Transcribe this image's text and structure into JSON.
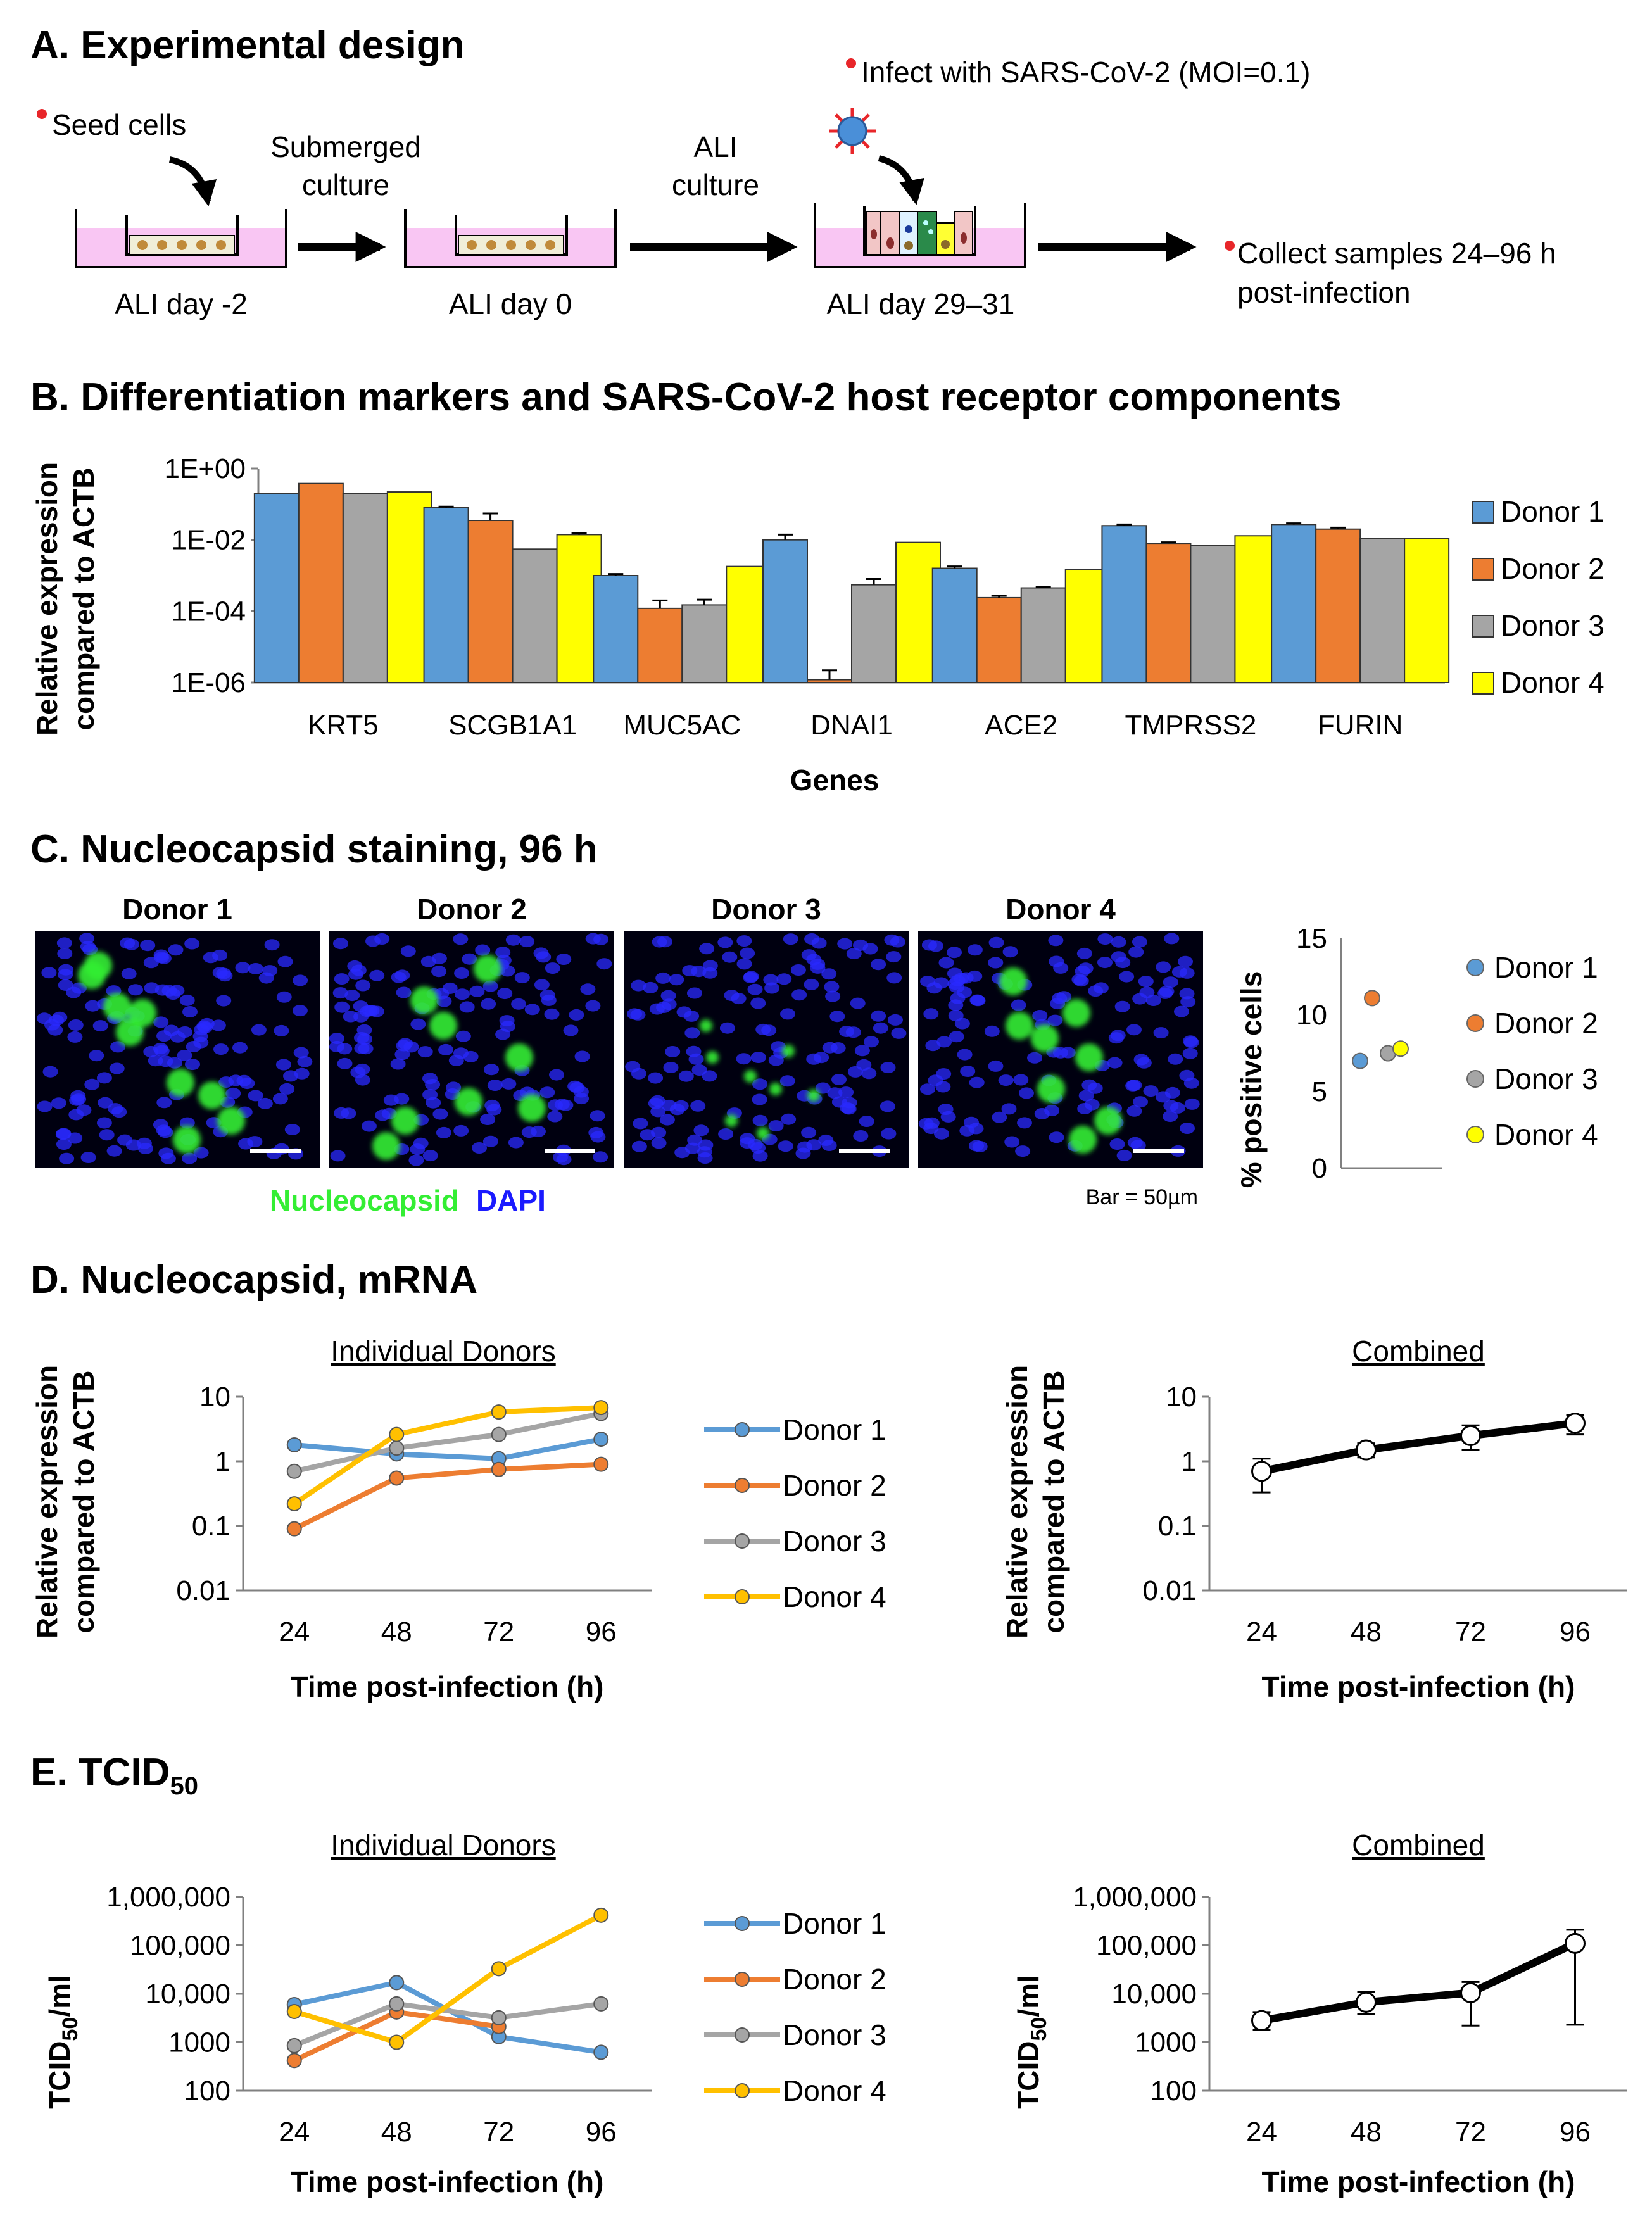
{
  "colors": {
    "donor1": "#5b9bd5",
    "donor2": "#ed7d31",
    "donor3": "#a5a5a5",
    "donor4": "#ffff00",
    "donor4_line": "#ffc000",
    "dot_red": "#e8262a",
    "pink": "#f9c6f3",
    "green": "#33ee33",
    "blue": "#1a1aff"
  },
  "panelA": {
    "title": "A. Experimental design",
    "seed": "Seed cells",
    "submerged1": "Submerged",
    "submerged2": "culture",
    "ali1": "ALI",
    "ali2": "culture",
    "infect": "Infect with SARS-CoV-2 (MOI=0.1)",
    "collect1": "Collect samples 24–96 h",
    "collect2": "post-infection",
    "day1": "ALI day -2",
    "day2": "ALI day 0",
    "day3": "ALI day 29–31"
  },
  "panelB": {
    "title": "B. Differentiation markers and SARS-CoV-2 host receptor components",
    "ylabel1": "Relative expression",
    "ylabel2": "compared to ACTB",
    "xlabel": "Genes",
    "yticks": [
      "1E+00",
      "1E-02",
      "1E-04",
      "1E-06"
    ],
    "legend": [
      "Donor 1",
      "Donor 2",
      "Donor 3",
      "Donor 4"
    ]
  },
  "panelC": {
    "title": "C. Nucleocapsid staining, 96 h",
    "donors": [
      "Donor 1",
      "Donor 2",
      "Donor 3",
      "Donor 4"
    ],
    "nuc": "Nucleocapsid",
    "dapi": "DAPI",
    "bar": "Bar = 50µm",
    "ylabel": "% positive cells",
    "yticks": [
      "15",
      "10",
      "5",
      "0"
    ],
    "legend": [
      "Donor 1",
      "Donor 2",
      "Donor 3",
      "Donor 4"
    ]
  },
  "panelD": {
    "title": "D. Nucleocapsid, mRNA",
    "sub_left": "Individual Donors",
    "sub_right": "Combined",
    "ylabel1": "Relative expression",
    "ylabel2": "compared to ACTB",
    "xlabel": "Time post-infection (h)",
    "yticks": [
      "10",
      "1",
      "0.1",
      "0.01"
    ],
    "xticks": [
      "24",
      "48",
      "72",
      "96"
    ],
    "legend": [
      "Donor 1",
      "Donor 2",
      "Donor 3",
      "Donor 4"
    ]
  },
  "panelE": {
    "title_main": "E. TCID",
    "title_sub": "50",
    "sub_left": "Individual Donors",
    "sub_right": "Combined",
    "ylabel_main": "TCID",
    "ylabel_sub": "50",
    "ylabel_end": "/ml",
    "xlabel": "Time post-infection (h)",
    "yticks": [
      "1,000,000",
      "100,000",
      "10,000",
      "1000",
      "100"
    ],
    "xticks": [
      "24",
      "48",
      "72",
      "96"
    ],
    "legend": [
      "Donor 1",
      "Donor 2",
      "Donor 3",
      "Donor 4"
    ]
  },
  "chart_data": [
    {
      "type": "bar",
      "title": "Differentiation markers and SARS-CoV-2 host receptor components",
      "xlabel": "Genes",
      "ylabel": "Relative expression compared to ACTB",
      "yscale": "log",
      "ylim": [
        1e-06,
        1
      ],
      "categories": [
        "KRT5",
        "SCGB1A1",
        "MUC5AC",
        "DNAI1",
        "ACE2",
        "TMPRSS2",
        "FURIN"
      ],
      "series": [
        {
          "name": "Donor 1",
          "values": [
            0.2,
            0.08,
            0.001,
            0.01,
            0.0016,
            0.025,
            0.027
          ],
          "errors": [
            0.0,
            0.005,
            0.0001,
            0.004,
            0.0002,
            0.002,
            0.002
          ]
        },
        {
          "name": "Donor 2",
          "values": [
            0.38,
            0.035,
            0.00012,
            1.2e-06,
            0.00024,
            0.008,
            0.02
          ],
          "errors": [
            0.0,
            0.02,
            8e-05,
            1e-06,
            3e-05,
            0.0005,
            0.002
          ]
        },
        {
          "name": "Donor 3",
          "values": [
            0.2,
            0.0055,
            0.00015,
            0.00055,
            0.00045,
            0.007,
            0.011
          ],
          "errors": [
            0.0,
            0.0,
            6e-05,
            0.00025,
            4e-05,
            0.0,
            0.0
          ]
        },
        {
          "name": "Donor 4",
          "values": [
            0.22,
            0.014,
            0.0018,
            0.0085,
            0.0015,
            0.013,
            0.011
          ],
          "errors": [
            0.0,
            0.0015,
            0.0,
            0.0,
            0.0,
            0.0,
            0.0
          ]
        }
      ]
    },
    {
      "type": "scatter",
      "title": "% positive cells",
      "ylabel": "% positive cells",
      "ylim": [
        0,
        15
      ],
      "points": [
        {
          "name": "Donor 1",
          "y": 7.0
        },
        {
          "name": "Donor 2",
          "y": 11.1
        },
        {
          "name": "Donor 3",
          "y": 7.5
        },
        {
          "name": "Donor 4",
          "y": 7.8
        }
      ]
    },
    {
      "type": "line",
      "title": "Individual Donors",
      "xlabel": "Time post-infection (h)",
      "ylabel": "Relative expression compared to ACTB",
      "yscale": "log",
      "ylim": [
        0.01,
        10
      ],
      "x": [
        24,
        48,
        72,
        96
      ],
      "series": [
        {
          "name": "Donor 1",
          "values": [
            1.8,
            1.3,
            1.1,
            2.2
          ]
        },
        {
          "name": "Donor 2",
          "values": [
            0.09,
            0.55,
            0.75,
            0.9
          ]
        },
        {
          "name": "Donor 3",
          "values": [
            0.7,
            1.6,
            2.6,
            5.5
          ]
        },
        {
          "name": "Donor 4",
          "values": [
            0.22,
            2.6,
            5.8,
            6.8
          ]
        }
      ]
    },
    {
      "type": "line",
      "title": "Combined",
      "xlabel": "Time post-infection (h)",
      "ylabel": "Relative expression compared to ACTB",
      "yscale": "log",
      "ylim": [
        0.01,
        10
      ],
      "x": [
        24,
        48,
        72,
        96
      ],
      "series": [
        {
          "name": "Combined",
          "values": [
            0.7,
            1.5,
            2.5,
            3.9
          ],
          "err_low": [
            0.33,
            1.15,
            1.5,
            2.6
          ],
          "err_high": [
            1.1,
            1.9,
            3.6,
            5.2
          ]
        }
      ]
    },
    {
      "type": "line",
      "title": "Individual Donors",
      "xlabel": "Time post-infection (h)",
      "ylabel": "TCID50/ml",
      "yscale": "log",
      "ylim": [
        100,
        1000000
      ],
      "x": [
        24,
        48,
        72,
        96
      ],
      "series": [
        {
          "name": "Donor 1",
          "values": [
            6000,
            17000,
            1300,
            620
          ]
        },
        {
          "name": "Donor 2",
          "values": [
            420,
            4200,
            2100,
            null
          ]
        },
        {
          "name": "Donor 3",
          "values": [
            850,
            6200,
            3200,
            6200
          ]
        },
        {
          "name": "Donor 4",
          "values": [
            4300,
            1000,
            33000,
            420000
          ]
        }
      ]
    },
    {
      "type": "line",
      "title": "Combined",
      "xlabel": "Time post-infection (h)",
      "ylabel": "TCID50/ml",
      "yscale": "log",
      "ylim": [
        100,
        1000000
      ],
      "x": [
        24,
        48,
        72,
        96
      ],
      "series": [
        {
          "name": "Combined",
          "values": [
            2800,
            6700,
            10500,
            110000
          ],
          "err_low": [
            1800,
            3800,
            2200,
            2300
          ],
          "err_high": [
            4200,
            11000,
            17500,
            210000
          ]
        }
      ]
    }
  ]
}
